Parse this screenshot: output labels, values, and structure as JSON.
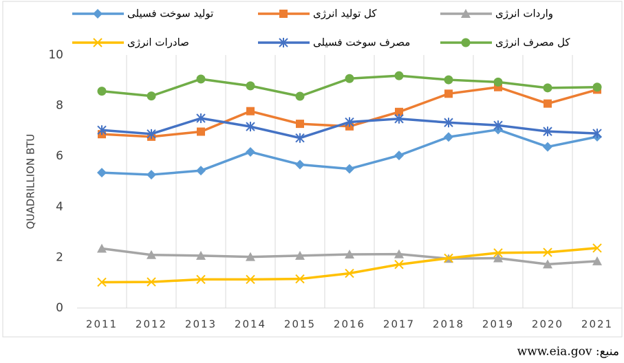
{
  "chart_data": {
    "type": "line",
    "y_label": "QUADRILLION BTU",
    "source": "منبع: www.eia.gov",
    "categories": [
      "2011",
      "2012",
      "2013",
      "2014",
      "2015",
      "2016",
      "2017",
      "2018",
      "2019",
      "2020",
      "2021"
    ],
    "ylim": [
      0,
      10
    ],
    "yticks": [
      0,
      2,
      4,
      6,
      8,
      10
    ],
    "grid": "vertical",
    "series": [
      {
        "name": "تولید سوخت فسیلی",
        "color": "#5b9bd5",
        "marker": "diamond",
        "values": [
          5.35,
          5.27,
          5.43,
          6.17,
          5.67,
          5.5,
          6.03,
          6.76,
          7.05,
          6.37,
          6.77
        ]
      },
      {
        "name": "کل تولید انرژی",
        "color": "#ed7d31",
        "marker": "square",
        "values": [
          6.87,
          6.77,
          6.97,
          7.78,
          7.28,
          7.18,
          7.75,
          8.47,
          8.73,
          8.08,
          8.63
        ]
      },
      {
        "name": "واردات انرژی",
        "color": "#a5a5a5",
        "marker": "triangle",
        "values": [
          2.35,
          2.1,
          2.07,
          2.02,
          2.07,
          2.12,
          2.13,
          1.95,
          1.97,
          1.73,
          1.85
        ]
      },
      {
        "name": "صادرات انرژی",
        "color": "#ffc000",
        "marker": "x",
        "values": [
          1.02,
          1.03,
          1.13,
          1.13,
          1.15,
          1.37,
          1.72,
          1.97,
          2.18,
          2.2,
          2.37
        ]
      },
      {
        "name": "مصرف سوخت فسیلی",
        "color": "#4472c4",
        "marker": "star",
        "values": [
          7.03,
          6.88,
          7.5,
          7.17,
          6.72,
          7.35,
          7.48,
          7.33,
          7.22,
          6.98,
          6.9
        ]
      },
      {
        "name": "کل مصرف انرژی",
        "color": "#70ad47",
        "marker": "circle",
        "values": [
          8.57,
          8.38,
          9.05,
          8.78,
          8.37,
          9.07,
          9.18,
          9.02,
          8.93,
          8.7,
          8.73
        ]
      }
    ]
  }
}
